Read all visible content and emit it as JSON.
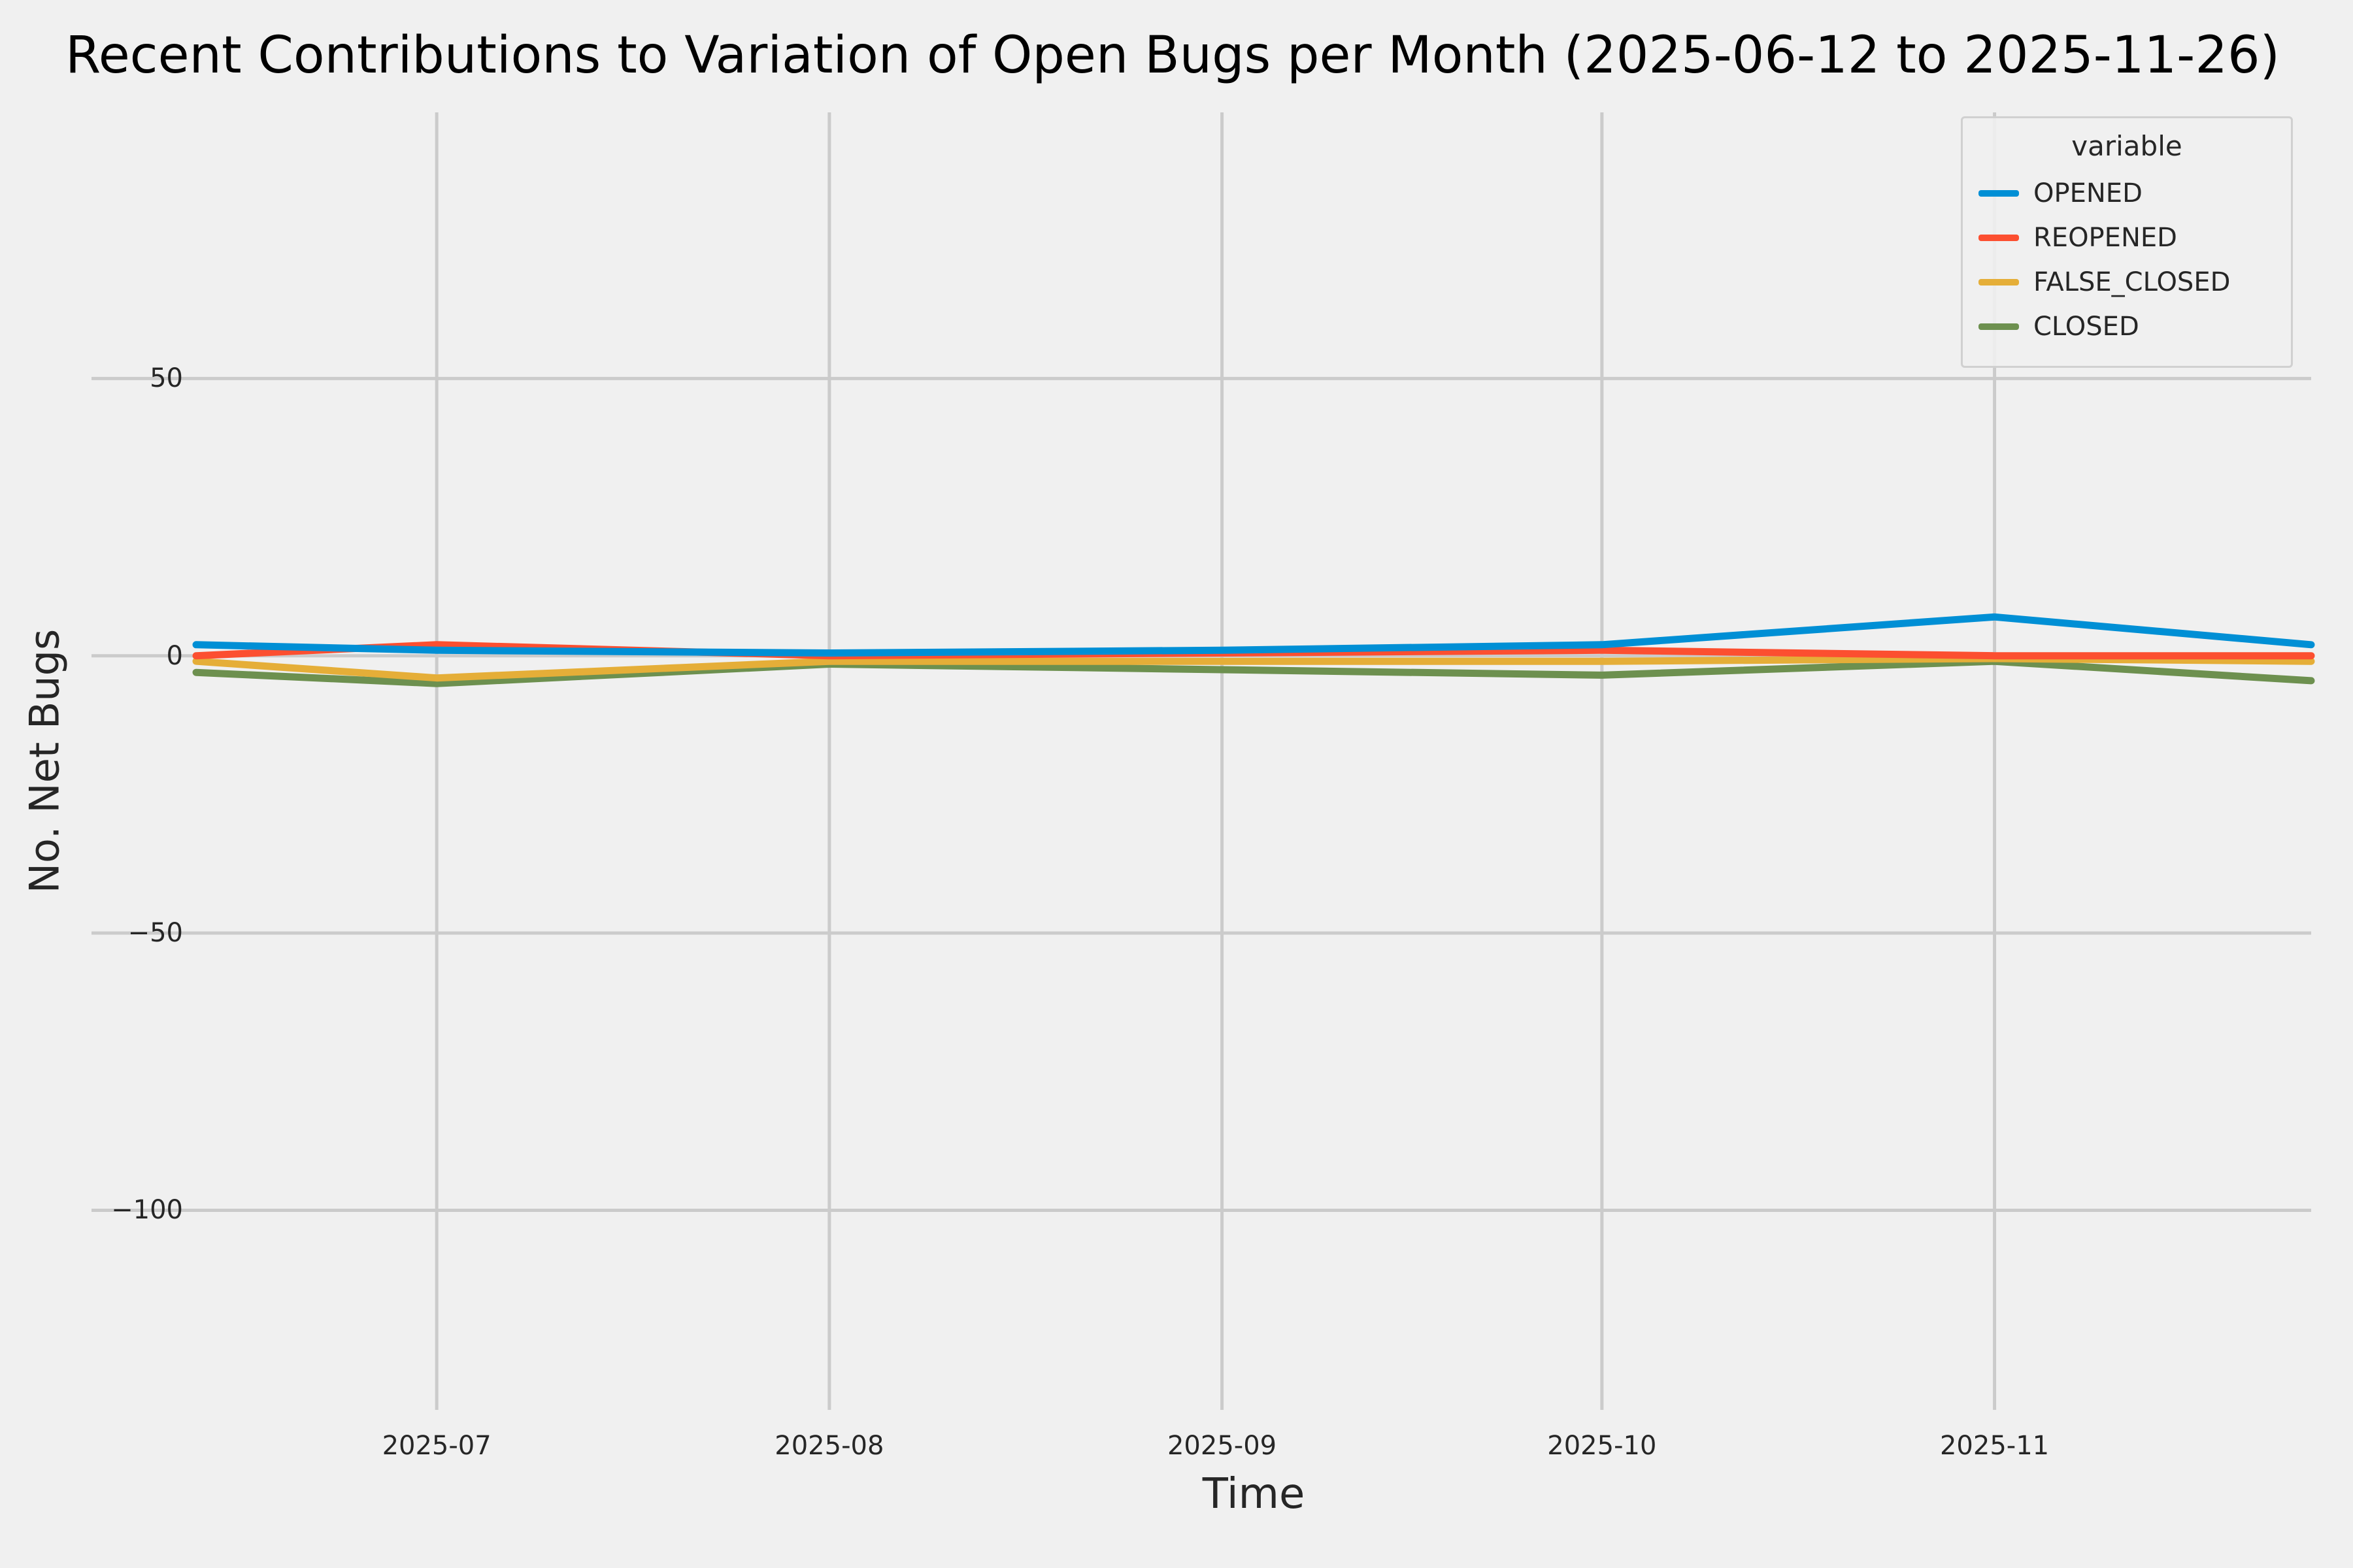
{
  "title": "Recent Contributions to Variation of Open Bugs per Month (2025-06-12 to 2025-11-26)",
  "chart_data": {
    "type": "line",
    "title": "Recent Contributions to Variation of Open Bugs per Month (2025-06-12 to 2025-11-26)",
    "xlabel": "Time",
    "ylabel": "No. Net Bugs",
    "legend_title": "variable",
    "legend_position": "upper right",
    "grid": true,
    "background_color": "#f0f0f0",
    "grid_color": "#cbcbcb",
    "x": [
      "2025-06-12",
      "2025-07-01",
      "2025-08-01",
      "2025-09-01",
      "2025-10-01",
      "2025-11-01",
      "2025-11-26"
    ],
    "x_tick_labels": [
      "2025-07",
      "2025-08",
      "2025-09",
      "2025-10",
      "2025-11"
    ],
    "x_tick_dates": [
      "2025-07-01",
      "2025-08-01",
      "2025-09-01",
      "2025-10-01",
      "2025-11-01"
    ],
    "y_ticks": [
      50,
      0,
      -50,
      -100
    ],
    "xlim": [
      "2025-06-12",
      "2025-11-26"
    ],
    "ylim": [
      -136,
      98
    ],
    "series": [
      {
        "name": "OPENED",
        "color": "#008fd5",
        "values": [
          2,
          1,
          0.5,
          1,
          2,
          7,
          2
        ]
      },
      {
        "name": "REOPENED",
        "color": "#fc4f30",
        "values": [
          0,
          2,
          0,
          0.5,
          1,
          0,
          0
        ]
      },
      {
        "name": "FALSE_CLOSED",
        "color": "#e5ae38",
        "values": [
          -1,
          -4,
          -1,
          -1,
          -1,
          -0.5,
          -1
        ]
      },
      {
        "name": "CLOSED",
        "color": "#6d904f",
        "values": [
          -3,
          -5,
          -1.5,
          -2.5,
          -3.5,
          -1,
          -4.5
        ]
      }
    ]
  }
}
